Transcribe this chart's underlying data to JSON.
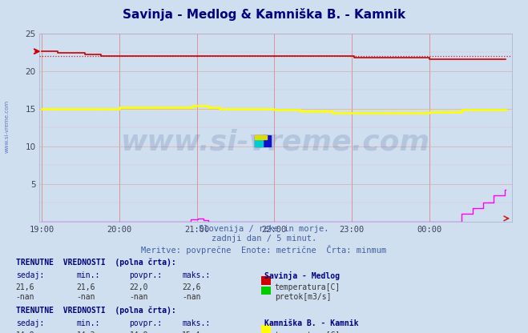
{
  "title": "Savinja - Medlog & Kamniška B. - Kamnik",
  "title_color": "#000080",
  "background_color": "#d0dff0",
  "plot_bg_color": "#d0dff0",
  "subtitle_lines": [
    "Slovenija / reke in morje.",
    "zadnji dan / 5 minut.",
    "Meritve: povprečne  Enote: metrične  Črta: minmum"
  ],
  "subtitle_color": "#4060a0",
  "xticklabels": [
    "19:00",
    "20:00",
    "21:00",
    "22:00",
    "23:00",
    "00:00"
  ],
  "xtick_positions": [
    0,
    72,
    144,
    216,
    288,
    360
  ],
  "total_points": 432,
  "ylim": [
    0,
    25
  ],
  "yticks": [
    5,
    10,
    15,
    20,
    25
  ],
  "grid_color_v": "#dd8888",
  "grid_color_h": "#ddaaaa",
  "watermark_text": "www.si-vreme.com",
  "watermark_color": "#1a3a7a",
  "watermark_alpha": 0.15,
  "savinja_temp_color": "#cc0000",
  "savinja_temp_avg": 22.0,
  "kamniska_temp_color": "#ffff00",
  "kamniska_temp_avg": 14.9,
  "kamniska_flow_color": "#ff00ff",
  "legend_box_savinja_temp": "#cc0000",
  "legend_box_savinja_flow": "#00cc00",
  "legend_box_kamniska_temp": "#ffff00",
  "legend_box_kamniska_flow": "#ff00ff",
  "table_header_color": "#000080",
  "table_label_color": "#000080",
  "table_value_color": "#333333"
}
